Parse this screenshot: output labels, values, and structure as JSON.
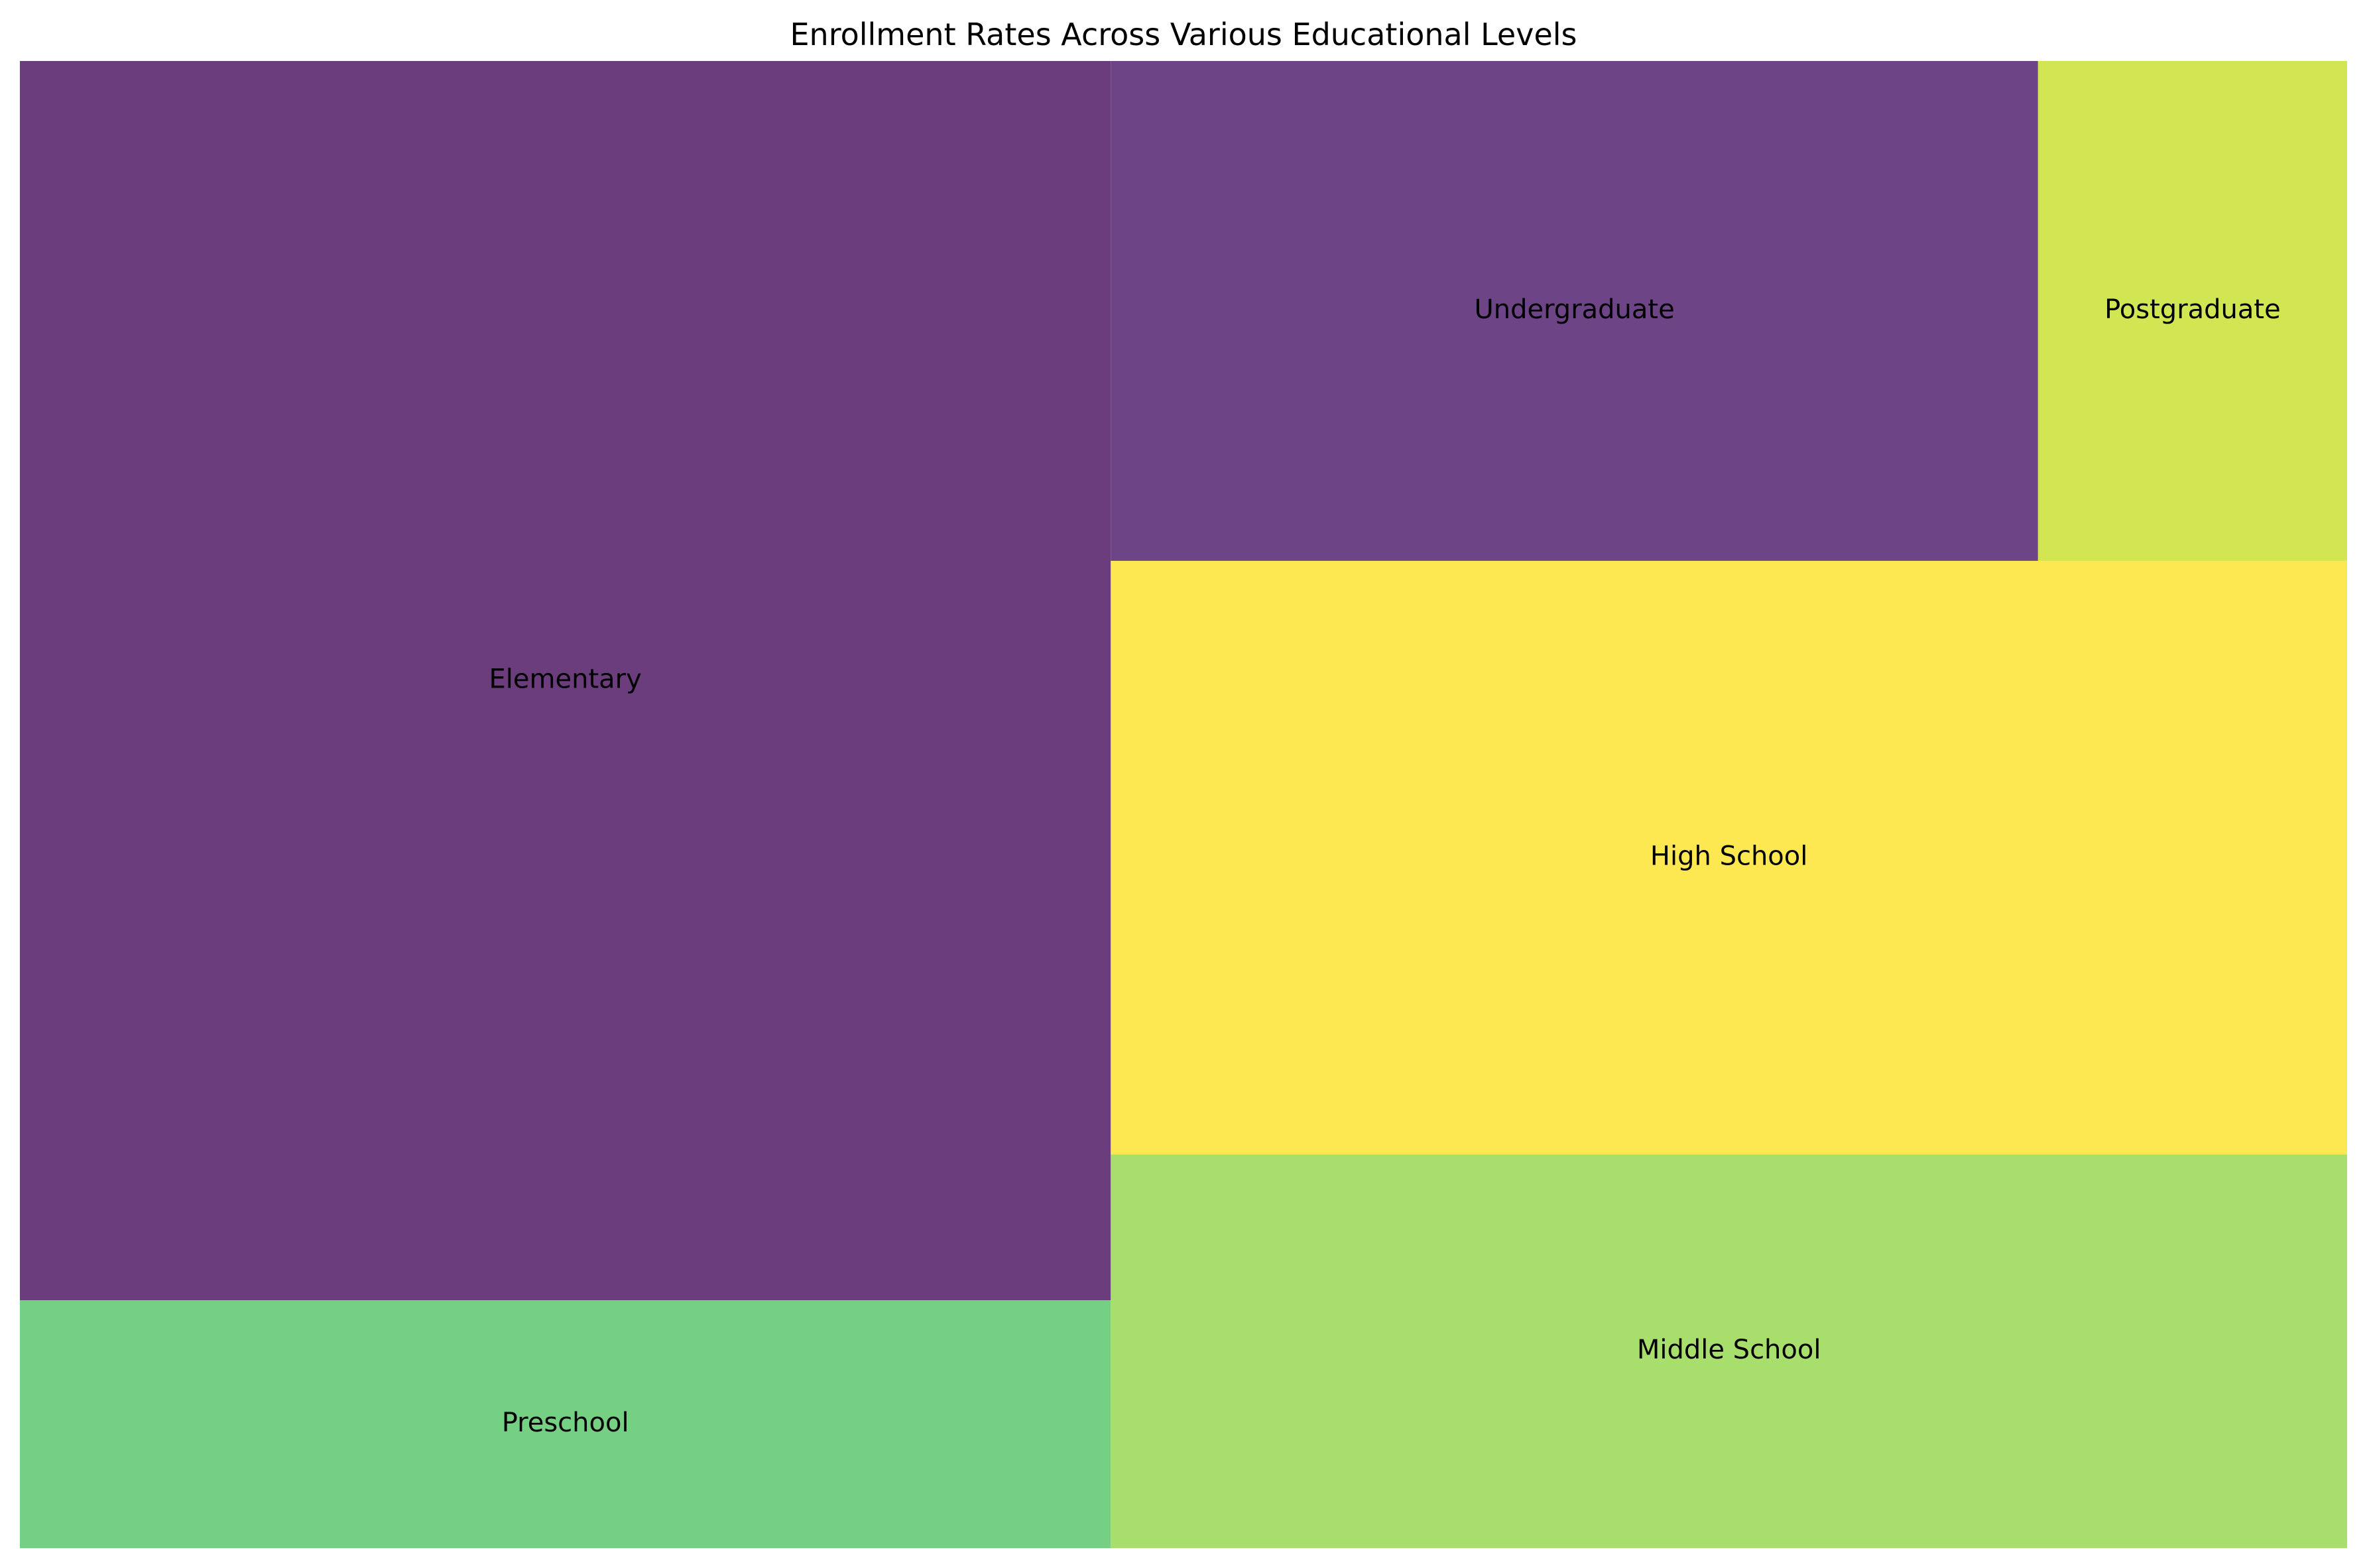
{
  "chart_data": {
    "type": "treemap",
    "title": "Enrollment Rates Across Various Educational Levels",
    "categories": [
      "Preschool",
      "Elementary",
      "Undergraduate",
      "Postgraduate",
      "High School",
      "Middle School"
    ],
    "values": [
      35,
      175,
      60,
      20,
      95,
      63
    ],
    "colors": [
      "#75d084",
      "#6b3d7d",
      "#6d4587",
      "#d2e552",
      "#fee852",
      "#a7de6c"
    ],
    "legend": "none",
    "axes": "off",
    "grid": false
  }
}
